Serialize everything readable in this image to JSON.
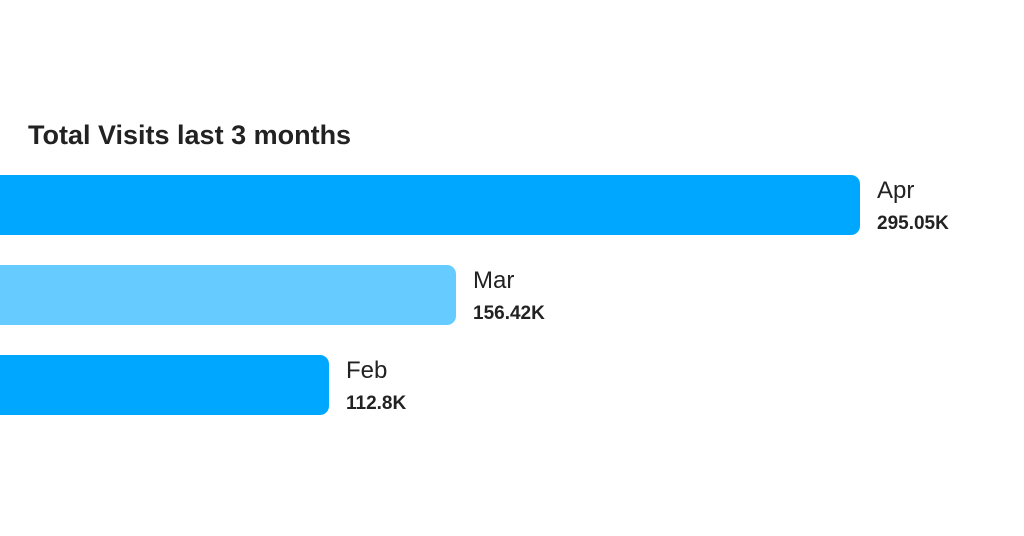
{
  "chart_data": {
    "type": "bar",
    "orientation": "horizontal",
    "title": "Total Visits last 3 months",
    "categories": [
      "Apr",
      "Mar",
      "Feb"
    ],
    "values": [
      295050,
      156420,
      112800
    ],
    "value_labels": [
      "295.05K",
      "156.42K",
      "112.8K"
    ],
    "bar_colors": [
      "#00a7ff",
      "#66ccff",
      "#00a7ff"
    ],
    "xlabel": "",
    "ylabel": "",
    "grid": false,
    "legend": "none"
  }
}
